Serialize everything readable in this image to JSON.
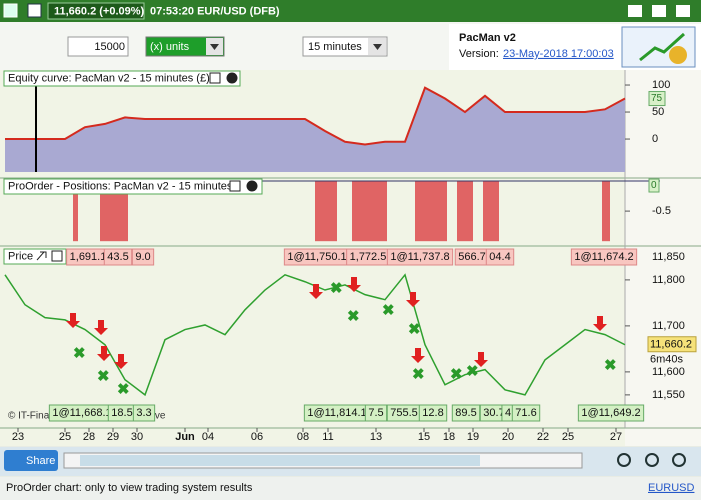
{
  "titlebar": {
    "quote": "11,660.2 (+0.09%)",
    "time": "07:53:20 EUR/USD (DFB)"
  },
  "toolbar": {
    "quantity": "15000",
    "unit": "(x) units",
    "timeframe": "15 minutes"
  },
  "info": {
    "name": "PacMan v2",
    "version_label": "Version:",
    "version": "23-May-2018 17:00:03"
  },
  "xaxis": {
    "xlim": [
      0,
      31
    ],
    "xticks": [
      {
        "value": 0.65,
        "label": "23"
      },
      {
        "value": 3,
        "label": "25"
      },
      {
        "value": 4.2,
        "label": "28"
      },
      {
        "value": 5.4,
        "label": "29"
      },
      {
        "value": 6.6,
        "label": "30"
      },
      {
        "value": 9,
        "label": "Jun"
      },
      {
        "value": 10.15,
        "label": "04"
      },
      {
        "value": 12.6,
        "label": "06"
      },
      {
        "value": 14.9,
        "label": "08"
      },
      {
        "value": 16.15,
        "label": "11"
      },
      {
        "value": 18.55,
        "label": "13"
      },
      {
        "value": 20.95,
        "label": "15"
      },
      {
        "value": 22.2,
        "label": "18"
      },
      {
        "value": 23.4,
        "label": "19"
      },
      {
        "value": 25.15,
        "label": "20"
      },
      {
        "value": 26.9,
        "label": "22"
      },
      {
        "value": 28.15,
        "label": "25"
      },
      {
        "value": 30.55,
        "label": "27"
      }
    ]
  },
  "equity": {
    "title": "Equity curve: PacMan v2 - 15 minutes (£)",
    "ylim": [
      -61,
      113
    ],
    "yticks": [
      100,
      50,
      0
    ],
    "current": 75,
    "line_color": "#d42a1e",
    "fill_color": "#a9a9d2",
    "values": [
      0,
      0,
      0,
      0,
      22,
      28,
      40,
      37,
      37,
      37,
      37,
      37,
      37,
      37,
      37,
      37,
      15,
      -5,
      -10,
      -5,
      -5,
      95,
      75,
      50,
      80,
      50,
      50,
      50,
      50,
      50,
      55,
      75
    ]
  },
  "positions": {
    "title": "ProOrder - Positions: PacMan v2 - 15 minutes",
    "ylim": [
      -1.08,
      0.05
    ],
    "yticks": [
      -0.5
    ],
    "current": 0,
    "color": "#e06464",
    "starts": [
      3.4,
      4.75,
      15.5,
      17.35,
      20.5,
      22.6,
      23.9,
      29.85
    ],
    "ends": [
      3.65,
      6.15,
      16.6,
      19.1,
      22.1,
      23.4,
      24.7,
      30.25
    ],
    "values": [
      -1,
      -1,
      -1,
      -1,
      -1,
      -1,
      -1,
      -1
    ]
  },
  "price": {
    "title": "Price",
    "ylim": [
      11478,
      11865
    ],
    "color": "#2fa02f",
    "yticks": [
      {
        "value": 11850,
        "label": "11,850"
      },
      {
        "value": 11800,
        "label": "11,800"
      },
      {
        "value": 11700,
        "label": "11,700"
      },
      {
        "value": 11600,
        "label": "11,600"
      },
      {
        "value": 11550,
        "label": "11,550"
      }
    ],
    "current": "11,660.2",
    "countdown": "6m40s",
    "values": [
      11811,
      11746,
      11718,
      11713,
      11692,
      11659,
      11583,
      11550,
      11670,
      11692,
      11702,
      11681,
      11735,
      11778,
      11811,
      11796,
      11778,
      11789,
      11768,
      11757,
      11811,
      11659,
      11572,
      11594,
      11605,
      11561,
      11550,
      11626,
      11659,
      11692,
      11681,
      11659
    ],
    "top_labels": [
      "1,691.1",
      "43.5",
      "9.0",
      "1@11,750.1",
      "1,772.5",
      "1@11,737.8",
      "566.7",
      "04.4",
      "1@11,674.2"
    ],
    "bottom_labels": [
      "1@11,668.1",
      "18.5",
      "3.3",
      "1@11,814.1",
      "7.5",
      "755.5",
      "12.8",
      "89.5",
      "30.7",
      "4",
      "71.6",
      "1@11,649.2"
    ],
    "watermark": "© IT-Finance.com  Data is indicative"
  },
  "footer": {
    "share": "Share",
    "status": "ProOrder chart: only to view trading system results",
    "symbol": "EURUSD"
  }
}
